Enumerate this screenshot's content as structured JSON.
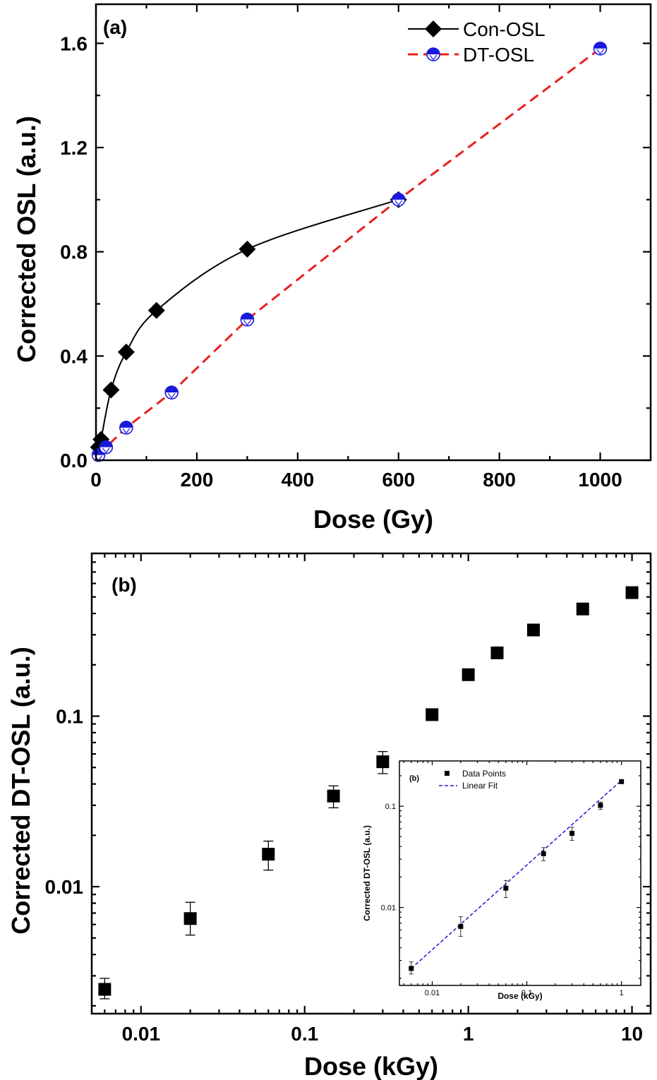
{
  "chart_data": [
    {
      "panel": "(a)",
      "type": "line",
      "xlabel": "Dose (Gy)",
      "ylabel": "Corrected OSL (a.u.)",
      "xlim": [
        0,
        1100
      ],
      "ylim": [
        0,
        1.75
      ],
      "xticks": [
        "0",
        "200",
        "400",
        "600",
        "800",
        "1000"
      ],
      "yticks": [
        "0.0",
        "0.4",
        "0.8",
        "1.2",
        "1.6"
      ],
      "legend_position": "top-right",
      "series": [
        {
          "name": "Con-OSL",
          "color": "#000000",
          "marker": "diamond",
          "line": "solid",
          "x": [
            5,
            10,
            30,
            60,
            120,
            300,
            600
          ],
          "y": [
            0.05,
            0.08,
            0.27,
            0.415,
            0.575,
            0.81,
            1.0
          ]
        },
        {
          "name": "DT-OSL",
          "color": "#e8201e",
          "marker_color": "#1a1adc",
          "marker": "half-filled-circle",
          "line": "dashed",
          "x": [
            5,
            20,
            60,
            150,
            300,
            600,
            1000
          ],
          "y": [
            0.02,
            0.05,
            0.125,
            0.26,
            0.54,
            1.0,
            1.58
          ]
        }
      ]
    },
    {
      "panel": "(b)",
      "type": "scatter",
      "xlabel": "Dose (kGy)",
      "ylabel": "Corrected DT-OSL (a.u.)",
      "xscale": "log",
      "yscale": "log",
      "xlim": [
        0.005,
        13
      ],
      "ylim": [
        0.0018,
        0.9
      ],
      "xticks": [
        "0.01",
        "0.1",
        "1",
        "10"
      ],
      "yticks": [
        "0.01",
        "0.1"
      ],
      "series": [
        {
          "marker": "square",
          "color": "#000000",
          "x": [
            0.006,
            0.02,
            0.06,
            0.15,
            0.3,
            0.6,
            1,
            1.5,
            2.5,
            5,
            10
          ],
          "y": [
            0.0025,
            0.0065,
            0.0155,
            0.034,
            0.054,
            0.102,
            0.175,
            0.235,
            0.32,
            0.425,
            0.53
          ],
          "err_low": [
            0.0022,
            0.0052,
            0.0125,
            0.029,
            0.046,
            0.096,
            0.17,
            0.23,
            0.315,
            0.42,
            0.525
          ],
          "err_high": [
            0.0029,
            0.0081,
            0.0185,
            0.039,
            0.062,
            0.108,
            0.18,
            0.24,
            0.325,
            0.43,
            0.535
          ]
        }
      ]
    },
    {
      "panel": "(b)",
      "type": "scatter",
      "note_inset": true,
      "xlabel": "Dose (kGy)",
      "ylabel": "Corrected DT-OSL (a.u.)",
      "xscale": "log",
      "yscale": "log",
      "xlim": [
        0.0045,
        1.6
      ],
      "ylim": [
        0.0017,
        0.28
      ],
      "xticks": [
        "0.01",
        "0.1",
        "1"
      ],
      "yticks": [
        "0.01",
        "0.1"
      ],
      "legend_position": "top-left",
      "series": [
        {
          "name": "Data Points",
          "marker": "square",
          "color": "#000000",
          "x": [
            0.006,
            0.02,
            0.06,
            0.15,
            0.3,
            0.6,
            1
          ],
          "y": [
            0.0025,
            0.0065,
            0.0155,
            0.034,
            0.054,
            0.102,
            0.175
          ],
          "err_low": [
            0.0022,
            0.0052,
            0.0125,
            0.029,
            0.046,
            0.093,
            0.168
          ],
          "err_high": [
            0.0029,
            0.0081,
            0.0185,
            0.039,
            0.062,
            0.11,
            0.182
          ]
        },
        {
          "name": "Linear Fit",
          "line": "dashed",
          "color": "#1a1adc",
          "x": [
            0.006,
            1
          ],
          "y": [
            0.0025,
            0.18
          ]
        }
      ]
    }
  ]
}
